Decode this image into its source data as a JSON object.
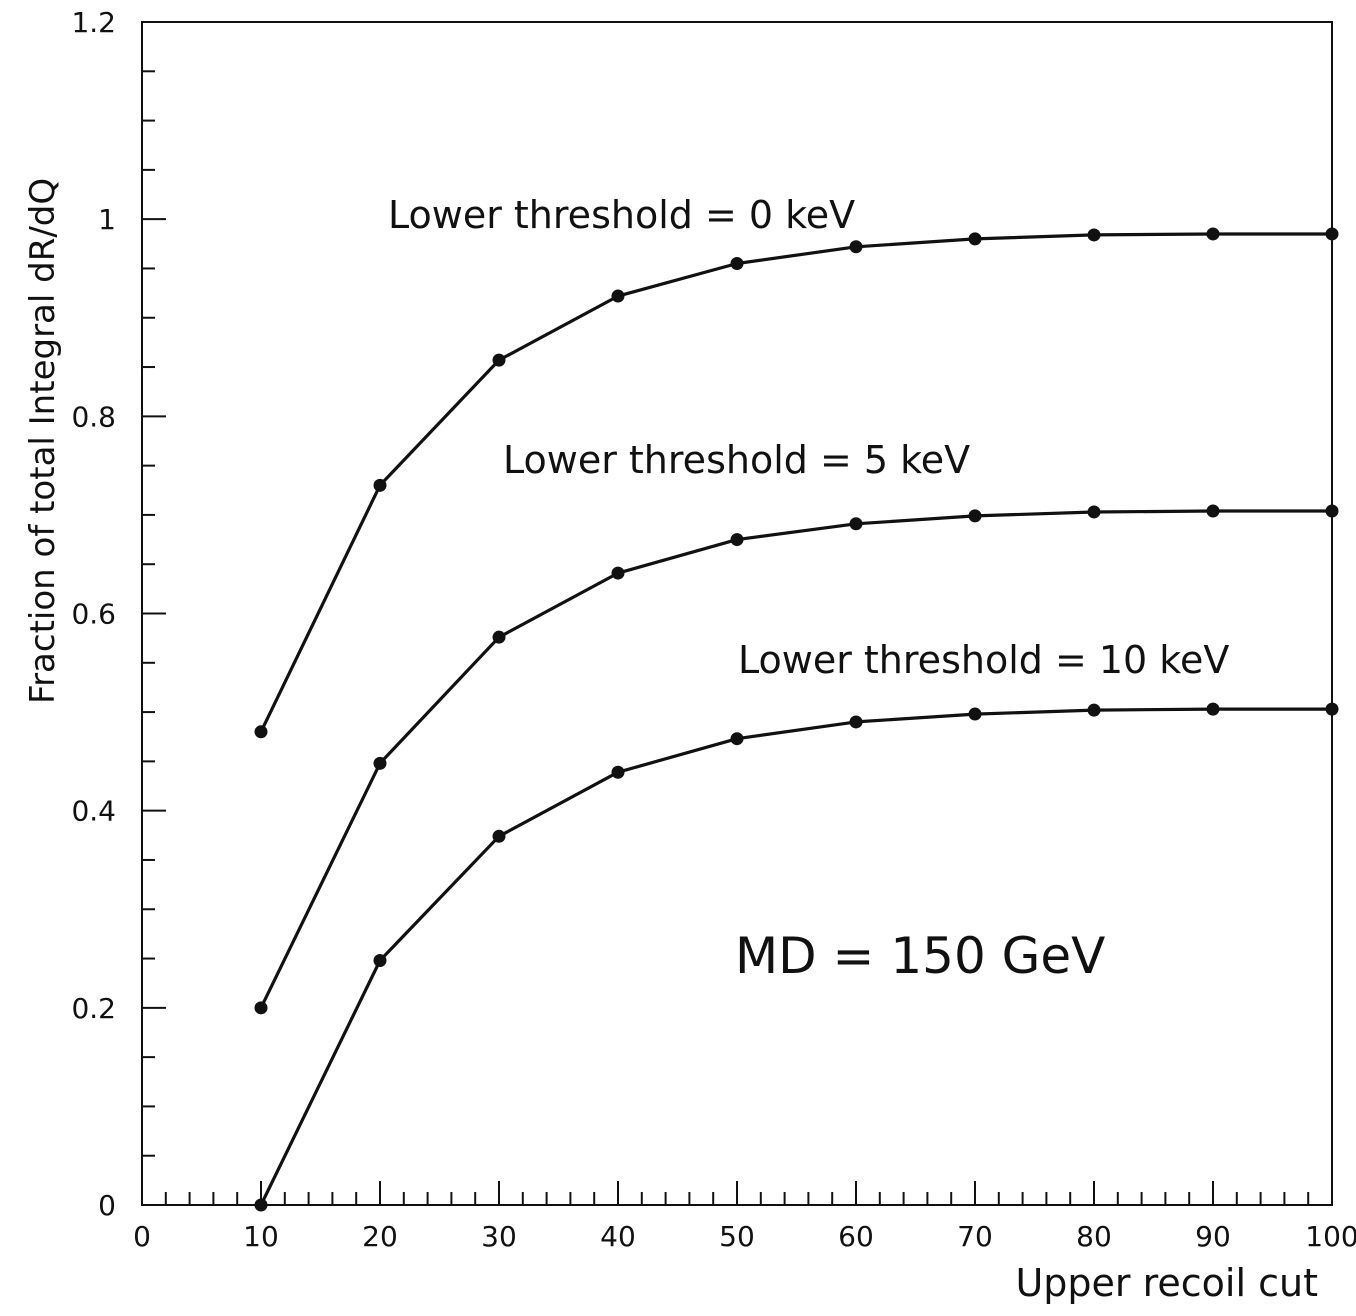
{
  "chart_data": {
    "type": "line",
    "xlabel": "Upper recoil cut",
    "ylabel": "Fraction of total Integral dR/dQ",
    "xlim": [
      0,
      100
    ],
    "ylim": [
      0,
      1.2
    ],
    "x_ticks": [
      "0",
      "10",
      "20",
      "30",
      "40",
      "50",
      "60",
      "70",
      "80",
      "90",
      "100"
    ],
    "y_ticks": [
      "0",
      "0.2",
      "0.4",
      "0.6",
      "0.8",
      "1",
      "1.2"
    ],
    "grid": false,
    "x": [
      10,
      20,
      30,
      40,
      50,
      60,
      70,
      80,
      90,
      100
    ],
    "series": [
      {
        "name": "Lower threshold = 0 keV",
        "values": [
          0.48,
          0.73,
          0.857,
          0.922,
          0.955,
          0.972,
          0.98,
          0.984,
          0.985,
          0.985
        ]
      },
      {
        "name": "Lower threshold = 5 keV",
        "values": [
          0.2,
          0.448,
          0.576,
          0.641,
          0.675,
          0.691,
          0.699,
          0.703,
          0.704,
          0.704
        ]
      },
      {
        "name": "Lower threshold = 10 keV",
        "values": [
          0.0,
          0.248,
          0.374,
          0.439,
          0.473,
          0.49,
          0.498,
          0.502,
          0.503,
          0.503
        ]
      }
    ],
    "annotations": [
      "MD = 150 GeV"
    ],
    "colors": {
      "line": "#111111",
      "marker": "#111111"
    }
  }
}
